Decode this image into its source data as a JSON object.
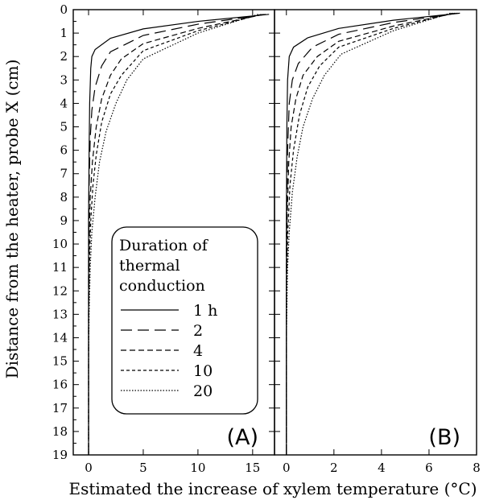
{
  "chart_data": {
    "type": "line",
    "ylabel": "Distance from the heater, probe X (cm)",
    "xlabel": "Estimated the increase of xylem temperature (°C)",
    "y_axis": {
      "range": [
        0,
        19
      ],
      "inverted": true,
      "ticks": [
        "0",
        "1",
        "2",
        "3",
        "4",
        "5",
        "6",
        "7",
        "8",
        "9",
        "10",
        "11",
        "12",
        "13",
        "14",
        "15",
        "16",
        "17",
        "18",
        "19"
      ]
    },
    "legend": {
      "title_lines": [
        "Duration of",
        "thermal",
        "conduction"
      ],
      "placement": "left panel, lower middle",
      "entries": [
        "1 h",
        "2",
        "4",
        "10",
        "20"
      ]
    },
    "panels": [
      {
        "label": "(A)",
        "xlim": [
          -1.4,
          17
        ],
        "xticks": [
          "0",
          "5",
          "10",
          "15"
        ],
        "xtick_values": [
          0,
          5,
          10,
          15
        ],
        "series": [
          {
            "name": "1 h",
            "dash": "solid",
            "points": [
              [
                16.5,
                0.2
              ],
              [
                10,
                0.5
              ],
              [
                5,
                0.82
              ],
              [
                2,
                1.22
              ],
              [
                0.6,
                1.7
              ],
              [
                0.3,
                2.0
              ],
              [
                0.2,
                2.5
              ],
              [
                0.1,
                4
              ],
              [
                0.05,
                6
              ],
              [
                0,
                9
              ],
              [
                0,
                19
              ]
            ]
          },
          {
            "name": "2",
            "dash": "long",
            "points": [
              [
                16.2,
                0.2
              ],
              [
                10,
                0.62
              ],
              [
                5,
                1.1
              ],
              [
                2,
                1.8
              ],
              [
                1.2,
                2.4
              ],
              [
                0.6,
                3.3
              ],
              [
                0.3,
                4.3
              ],
              [
                0.15,
                5.5
              ],
              [
                0.05,
                7.5
              ],
              [
                0,
                11
              ],
              [
                0,
                19
              ]
            ]
          },
          {
            "name": "4",
            "dash": "medium",
            "points": [
              [
                16,
                0.2
              ],
              [
                10,
                0.8
              ],
              [
                5,
                1.45
              ],
              [
                3,
                2.1
              ],
              [
                2,
                2.8
              ],
              [
                1.2,
                3.8
              ],
              [
                0.7,
                5
              ],
              [
                0.35,
                6.5
              ],
              [
                0.15,
                8
              ],
              [
                0.05,
                10
              ],
              [
                0,
                13
              ],
              [
                0,
                19
              ]
            ]
          },
          {
            "name": "10",
            "dash": "short",
            "points": [
              [
                15.8,
                0.2
              ],
              [
                10,
                0.9
              ],
              [
                5,
                1.75
              ],
              [
                3,
                2.8
              ],
              [
                2,
                3.6
              ],
              [
                1.2,
                4.8
              ],
              [
                0.7,
                6.2
              ],
              [
                0.4,
                7.5
              ],
              [
                0.2,
                9
              ],
              [
                0.1,
                10.5
              ],
              [
                0,
                13
              ],
              [
                0,
                19
              ]
            ]
          },
          {
            "name": "20",
            "dash": "dotted",
            "points": [
              [
                15.5,
                0.2
              ],
              [
                10,
                1.0
              ],
              [
                5,
                2.1
              ],
              [
                3.5,
                3.0
              ],
              [
                2.5,
                4.0
              ],
              [
                1.6,
                5.2
              ],
              [
                1.0,
                6.5
              ],
              [
                0.6,
                8
              ],
              [
                0.3,
                9.5
              ],
              [
                0.15,
                11
              ],
              [
                0.05,
                13
              ],
              [
                0,
                15
              ],
              [
                0,
                19
              ]
            ]
          }
        ]
      },
      {
        "label": "(B)",
        "xlim": [
          -0.5,
          8
        ],
        "xticks": [
          "0",
          "2",
          "4",
          "6",
          "8"
        ],
        "xtick_values": [
          0,
          2,
          4,
          6,
          8
        ],
        "series": [
          {
            "name": "1 h",
            "dash": "solid",
            "points": [
              [
                7.3,
                0.15
              ],
              [
                4.5,
                0.45
              ],
              [
                2.2,
                0.8
              ],
              [
                0.9,
                1.2
              ],
              [
                0.3,
                1.6
              ],
              [
                0.12,
                2.0
              ],
              [
                0.05,
                3
              ],
              [
                0.02,
                5
              ],
              [
                0,
                9
              ],
              [
                0,
                19
              ]
            ]
          },
          {
            "name": "2",
            "dash": "long",
            "points": [
              [
                7.2,
                0.15
              ],
              [
                4.5,
                0.55
              ],
              [
                2.2,
                1.05
              ],
              [
                1.1,
                1.6
              ],
              [
                0.5,
                2.3
              ],
              [
                0.25,
                3.0
              ],
              [
                0.12,
                4
              ],
              [
                0.05,
                6
              ],
              [
                0,
                10
              ],
              [
                0,
                19
              ]
            ]
          },
          {
            "name": "4",
            "dash": "medium",
            "points": [
              [
                7.1,
                0.15
              ],
              [
                4.5,
                0.7
              ],
              [
                2.2,
                1.35
              ],
              [
                1.3,
                2.0
              ],
              [
                0.7,
                2.8
              ],
              [
                0.4,
                3.8
              ],
              [
                0.2,
                5
              ],
              [
                0.1,
                6.5
              ],
              [
                0.03,
                9
              ],
              [
                0,
                12
              ],
              [
                0,
                19
              ]
            ]
          },
          {
            "name": "10",
            "dash": "short",
            "points": [
              [
                7,
                0.15
              ],
              [
                4.5,
                0.8
              ],
              [
                2.2,
                1.6
              ],
              [
                1.4,
                2.4
              ],
              [
                0.9,
                3.3
              ],
              [
                0.55,
                4.5
              ],
              [
                0.3,
                6
              ],
              [
                0.15,
                7.5
              ],
              [
                0.06,
                9.5
              ],
              [
                0,
                12
              ],
              [
                0,
                19
              ]
            ]
          },
          {
            "name": "20",
            "dash": "dotted",
            "points": [
              [
                6.9,
                0.15
              ],
              [
                4.5,
                0.9
              ],
              [
                2.3,
                1.9
              ],
              [
                1.6,
                2.8
              ],
              [
                1.1,
                3.8
              ],
              [
                0.7,
                5
              ],
              [
                0.45,
                6.3
              ],
              [
                0.25,
                7.8
              ],
              [
                0.12,
                9.5
              ],
              [
                0.05,
                11
              ],
              [
                0,
                14
              ],
              [
                0,
                19
              ]
            ]
          }
        ]
      }
    ]
  }
}
